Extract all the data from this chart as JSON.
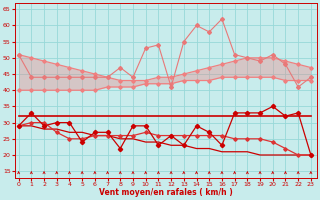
{
  "x": [
    0,
    1,
    2,
    3,
    4,
    5,
    6,
    7,
    8,
    9,
    10,
    11,
    12,
    13,
    14,
    15,
    16,
    17,
    18,
    19,
    20,
    21,
    22,
    23
  ],
  "bg_color": "#c8ecec",
  "grid_color": "#a0d8d8",
  "xlabel": "Vent moyen/en rafales ( km/h )",
  "ylim": [
    13,
    67
  ],
  "xlim": [
    -0.3,
    23.5
  ],
  "yticks": [
    15,
    20,
    25,
    30,
    35,
    40,
    45,
    50,
    55,
    60,
    65
  ],
  "xticks": [
    0,
    1,
    2,
    3,
    4,
    5,
    6,
    7,
    8,
    9,
    10,
    11,
    12,
    13,
    14,
    15,
    16,
    17,
    18,
    19,
    20,
    21,
    22,
    23
  ],
  "gust_upper_trend": [
    51,
    50,
    49,
    48,
    47,
    46,
    45,
    44,
    43,
    43,
    43,
    44,
    44,
    45,
    46,
    47,
    48,
    49,
    50,
    50,
    50,
    49,
    48,
    47
  ],
  "gust_lower_trend": [
    40,
    40,
    40,
    40,
    40,
    40,
    40,
    41,
    41,
    41,
    42,
    42,
    42,
    43,
    43,
    43,
    44,
    44,
    44,
    44,
    44,
    43,
    43,
    43
  ],
  "gust_line": [
    51,
    44,
    44,
    44,
    44,
    44,
    44,
    44,
    47,
    44,
    53,
    54,
    41,
    55,
    60,
    58,
    62,
    51,
    50,
    49,
    51,
    48,
    41,
    44
  ],
  "mean_upper_trend": [
    32,
    32,
    32,
    32,
    32,
    32,
    32,
    32,
    32,
    32,
    32,
    32,
    32,
    32,
    32,
    32,
    32,
    32,
    32,
    32,
    32,
    32,
    32,
    32
  ],
  "mean_lower_trend": [
    29,
    29,
    28,
    28,
    27,
    27,
    26,
    26,
    25,
    25,
    24,
    24,
    23,
    23,
    22,
    22,
    21,
    21,
    21,
    20,
    20,
    20,
    20,
    20
  ],
  "mean_line": [
    29,
    33,
    29,
    30,
    30,
    24,
    27,
    27,
    22,
    29,
    29,
    23,
    26,
    23,
    29,
    27,
    23,
    33,
    33,
    33,
    35,
    32,
    33,
    20
  ],
  "mean_flat": [
    30,
    32,
    30,
    30,
    30,
    30,
    31,
    31,
    31,
    31,
    31,
    31,
    31,
    31,
    31,
    32,
    32,
    32,
    32,
    32,
    32,
    32,
    32,
    32
  ],
  "lower_line": [
    29,
    30,
    30,
    27,
    25,
    25,
    26,
    26,
    26,
    26,
    27,
    26,
    26,
    26,
    26,
    26,
    26,
    25,
    25,
    25,
    24,
    22,
    20,
    20
  ],
  "color_light": "#f08080",
  "color_salmon": "#e87878",
  "color_dark": "#cc0000",
  "color_mid": "#dd3333",
  "bg_color2": "#c8ecec",
  "text_color": "#cc0000",
  "grid_c": "#98d8d8"
}
